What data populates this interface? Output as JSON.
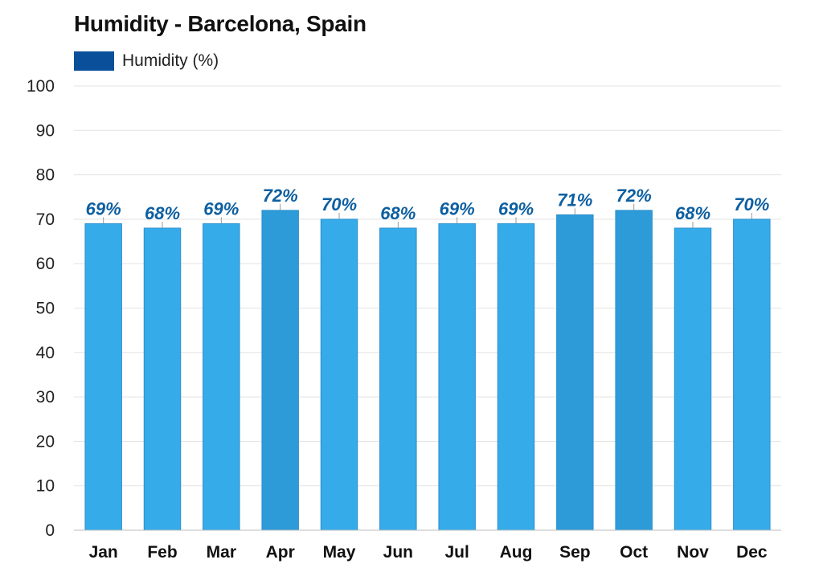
{
  "chart_data": {
    "type": "bar",
    "title": "Humidity - Barcelona, Spain",
    "xlabel": "",
    "ylabel": "",
    "ylim": [
      0,
      100
    ],
    "yticks": [
      0,
      10,
      20,
      30,
      40,
      50,
      60,
      70,
      80,
      90,
      100
    ],
    "grid": true,
    "legend": {
      "position": "top-left",
      "entries": [
        "Humidity (%)"
      ]
    },
    "categories": [
      "Jan",
      "Feb",
      "Mar",
      "Apr",
      "May",
      "Jun",
      "Jul",
      "Aug",
      "Sep",
      "Oct",
      "Nov",
      "Dec"
    ],
    "series": [
      {
        "name": "Humidity (%)",
        "values": [
          69,
          68,
          69,
          72,
          70,
          68,
          69,
          69,
          71,
          72,
          68,
          70
        ],
        "data_labels": [
          "69%",
          "68%",
          "69%",
          "72%",
          "70%",
          "68%",
          "69%",
          "69%",
          "71%",
          "72%",
          "68%",
          "70%"
        ]
      }
    ],
    "highlighted_categories": [
      "Apr",
      "Sep",
      "Oct"
    ],
    "colors": {
      "bar": "#35abea",
      "bar_highlight": "#2e9bd9",
      "bar_edge": "#2a8fcc",
      "legend_swatch": "#0a4f9a",
      "data_label": "#0d5fa0"
    }
  }
}
